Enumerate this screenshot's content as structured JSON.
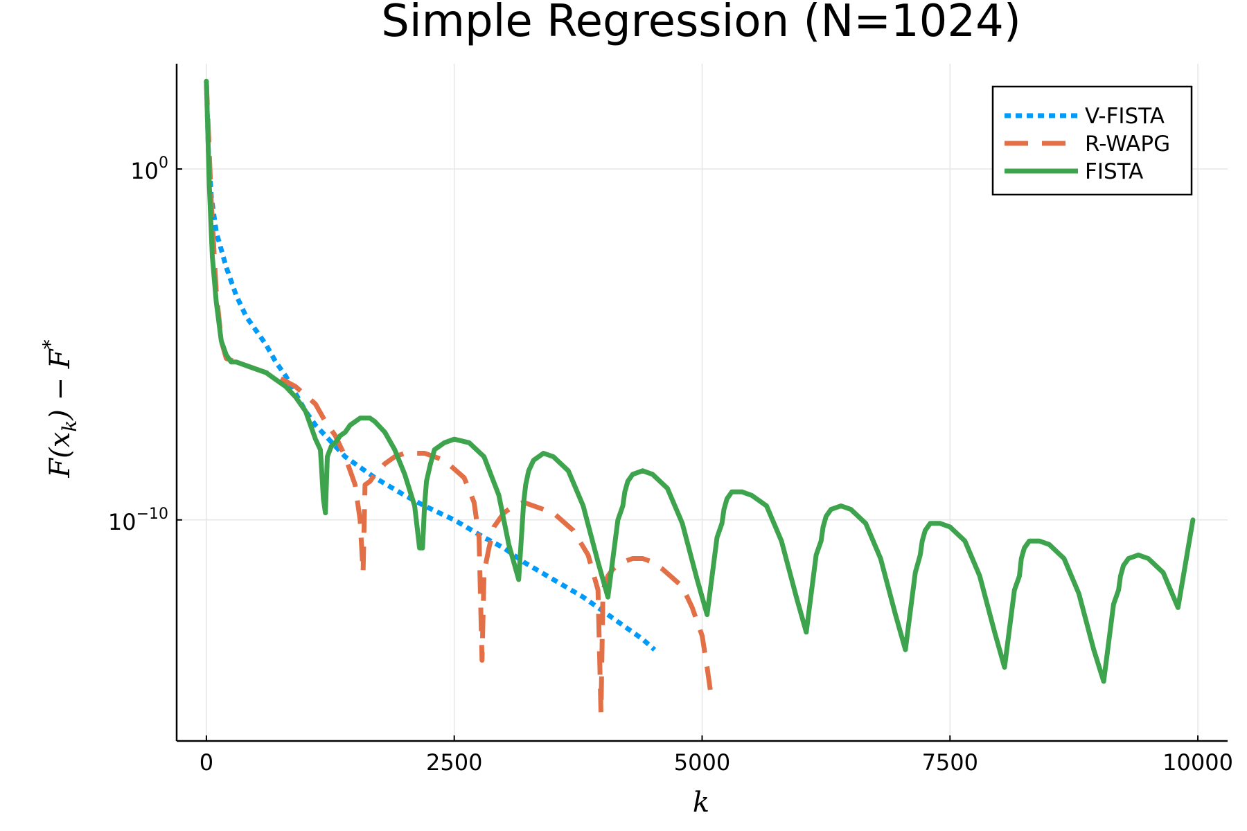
{
  "chart_data": {
    "type": "line",
    "title": "Simple Regression (N=1024)",
    "xlabel": "k",
    "ylabel": "F(x_k) − F^*",
    "x_scale": "linear",
    "y_scale": "log10",
    "xlim": [
      -300,
      10300
    ],
    "ylim_log10": [
      -16.3,
      3.0
    ],
    "x_ticks": [
      0,
      2500,
      5000,
      7500,
      10000
    ],
    "x_tick_labels": [
      "0",
      "2500",
      "5000",
      "7500",
      "10000"
    ],
    "y_ticks_log10": [
      0,
      -10
    ],
    "y_tick_labels": [
      {
        "base": "10",
        "exp": "0"
      },
      {
        "base": "10",
        "exp": "−10"
      }
    ],
    "grid": true,
    "legend_position": "top-right",
    "series": [
      {
        "name": "V-FISTA",
        "color": "#009af9",
        "style": "dotted",
        "x": [
          0,
          20,
          50,
          100,
          200,
          300,
          400,
          500,
          600,
          700,
          800,
          900,
          1000,
          1100,
          1200,
          1300,
          1400,
          1500,
          1700,
          2000,
          2200,
          2500,
          2800,
          3000,
          3200,
          3500,
          3800,
          4000,
          4200,
          4400,
          4520
        ],
        "log10_y": [
          2.5,
          0.5,
          -0.8,
          -1.8,
          -2.8,
          -3.6,
          -4.2,
          -4.6,
          -5.0,
          -5.5,
          -5.9,
          -6.4,
          -6.9,
          -7.3,
          -7.6,
          -7.9,
          -8.2,
          -8.4,
          -8.8,
          -9.3,
          -9.6,
          -10.0,
          -10.5,
          -10.8,
          -11.2,
          -11.7,
          -12.2,
          -12.6,
          -13.0,
          -13.4,
          -13.7
        ]
      },
      {
        "name": "R-WAPG",
        "color": "#e26f46",
        "style": "dashed",
        "x": [
          0,
          50,
          100,
          150,
          200,
          300,
          500,
          700,
          900,
          1100,
          1200,
          1300,
          1400,
          1500,
          1550,
          1580,
          1600,
          1650,
          1700,
          1800,
          1900,
          2000,
          2200,
          2400,
          2600,
          2700,
          2750,
          2780,
          2800,
          2850,
          2900,
          3000,
          3100,
          3200,
          3300,
          3500,
          3700,
          3850,
          3950,
          3980,
          4000,
          4050,
          4100,
          4200,
          4300,
          4400,
          4500,
          4600,
          4800,
          4900,
          5000,
          5050,
          5100
        ],
        "log10_y": [
          2.5,
          -1.0,
          -3.5,
          -4.9,
          -5.4,
          -5.5,
          -5.7,
          -5.9,
          -6.2,
          -6.7,
          -7.2,
          -7.6,
          -8.2,
          -9.0,
          -10.0,
          -11.5,
          -9.0,
          -8.9,
          -8.7,
          -8.4,
          -8.2,
          -8.1,
          -8.1,
          -8.3,
          -8.8,
          -9.5,
          -10.5,
          -14.0,
          -11.5,
          -10.8,
          -10.2,
          -9.8,
          -9.6,
          -9.5,
          -9.6,
          -9.8,
          -10.3,
          -11.0,
          -12.0,
          -15.5,
          -12.0,
          -11.6,
          -11.4,
          -11.2,
          -11.1,
          -11.1,
          -11.2,
          -11.4,
          -11.9,
          -12.5,
          -13.3,
          -14.2,
          -15.2
        ]
      },
      {
        "name": "FISTA",
        "color": "#3da44d",
        "style": "solid",
        "x": [
          0,
          30,
          60,
          100,
          150,
          200,
          250,
          300,
          400,
          500,
          600,
          700,
          800,
          900,
          1000,
          1050,
          1100,
          1150,
          1180,
          1200,
          1220,
          1260,
          1300,
          1350,
          1400,
          1450,
          1500,
          1550,
          1600,
          1650,
          1700,
          1800,
          1900,
          2000,
          2100,
          2150,
          2180,
          2200,
          2220,
          2260,
          2300,
          2400,
          2500,
          2650,
          2800,
          2950,
          3050,
          3150,
          3200,
          3220,
          3250,
          3300,
          3400,
          3500,
          3650,
          3800,
          3950,
          4050,
          4150,
          4200,
          4220,
          4250,
          4300,
          4400,
          4500,
          4650,
          4800,
          4950,
          5050,
          5150,
          5200,
          5220,
          5250,
          5300,
          5400,
          5500,
          5650,
          5800,
          5950,
          6050,
          6150,
          6200,
          6220,
          6250,
          6300,
          6400,
          6500,
          6650,
          6800,
          6950,
          7050,
          7150,
          7200,
          7220,
          7250,
          7300,
          7400,
          7500,
          7650,
          7800,
          7950,
          8050,
          8150,
          8200,
          8220,
          8250,
          8300,
          8400,
          8500,
          8650,
          8800,
          8950,
          9050,
          9150,
          9200,
          9220,
          9250,
          9300,
          9400,
          9500,
          9650,
          9800,
          9950,
          10000
        ],
        "log10_y": [
          2.5,
          -0.5,
          -2.5,
          -3.8,
          -4.9,
          -5.3,
          -5.5,
          -5.5,
          -5.6,
          -5.7,
          -5.8,
          -6.0,
          -6.2,
          -6.5,
          -6.9,
          -7.3,
          -7.7,
          -8.0,
          -9.4,
          -9.8,
          -8.2,
          -7.9,
          -7.8,
          -7.6,
          -7.5,
          -7.3,
          -7.2,
          -7.1,
          -7.1,
          -7.1,
          -7.2,
          -7.5,
          -8.0,
          -8.7,
          -9.6,
          -10.8,
          -10.8,
          -9.6,
          -8.9,
          -8.4,
          -8.0,
          -7.8,
          -7.7,
          -7.8,
          -8.2,
          -9.3,
          -10.7,
          -11.7,
          -9.5,
          -9.0,
          -8.6,
          -8.3,
          -8.1,
          -8.2,
          -8.6,
          -9.6,
          -11.2,
          -12.2,
          -10.0,
          -9.6,
          -9.2,
          -8.9,
          -8.7,
          -8.6,
          -8.7,
          -9.1,
          -10.1,
          -11.7,
          -12.7,
          -10.5,
          -10.1,
          -9.7,
          -9.4,
          -9.2,
          -9.2,
          -9.3,
          -9.6,
          -10.6,
          -12.2,
          -13.2,
          -11.0,
          -10.6,
          -10.2,
          -9.9,
          -9.7,
          -9.6,
          -9.7,
          -10.1,
          -11.1,
          -12.7,
          -13.7,
          -11.5,
          -11.0,
          -10.6,
          -10.3,
          -10.1,
          -10.1,
          -10.2,
          -10.6,
          -11.6,
          -13.2,
          -14.2,
          -12.0,
          -11.6,
          -11.1,
          -10.8,
          -10.6,
          -10.6,
          -10.7,
          -11.1,
          -12.1,
          -13.7,
          -14.6,
          -12.4,
          -12.0,
          -11.6,
          -11.3,
          -11.1,
          -11.0,
          -11.1,
          -11.5,
          -12.5,
          -10.0
        ]
      }
    ]
  }
}
